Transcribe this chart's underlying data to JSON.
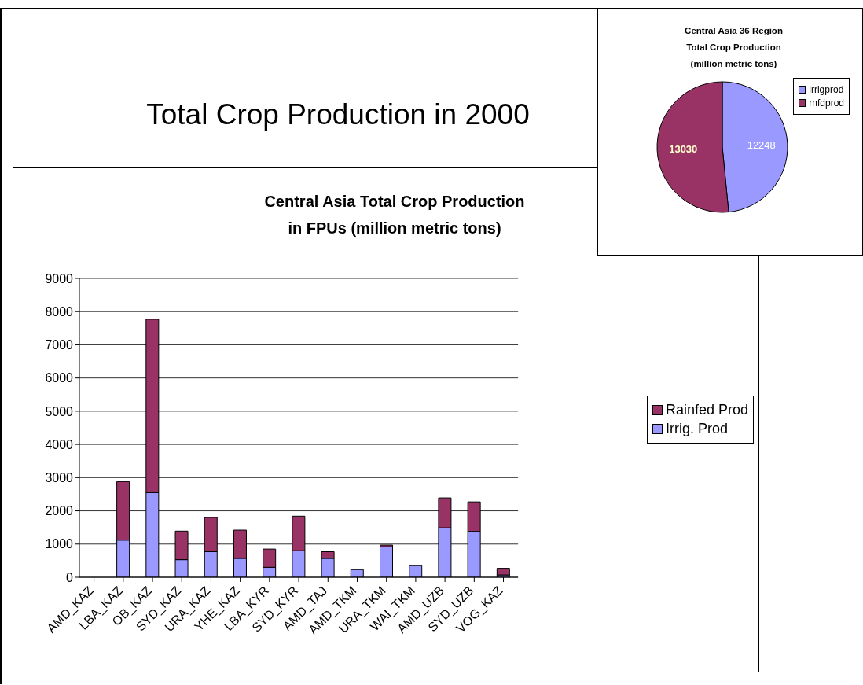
{
  "chart_data": [
    {
      "type": "bar",
      "title": "Central Asia Total Crop Production\nin FPUs (million metric tons)",
      "annotations": [
        "Total Crop Production in 2000"
      ],
      "stacked": true,
      "categories": [
        "AMD_KAZ",
        "LBA_KAZ",
        "OB_KAZ",
        "SYD_KAZ",
        "URA_KAZ",
        "YHE_KAZ",
        "LBA_KYR",
        "SYD_KYR",
        "AMD_TAJ",
        "AMD_TKM",
        "URA_TKM",
        "WAI_TKM",
        "AMD_UZB",
        "SYD_UZB",
        "VOG_KAZ"
      ],
      "series": [
        {
          "name": "Irrig. Prod",
          "color": "#9999ff",
          "values": [
            0,
            1120,
            2550,
            530,
            770,
            570,
            300,
            800,
            570,
            230,
            920,
            350,
            1490,
            1380,
            70
          ]
        },
        {
          "name": "Rainfed Prod",
          "color": "#993366",
          "values": [
            0,
            1760,
            5220,
            860,
            1030,
            850,
            550,
            1040,
            200,
            0,
            50,
            0,
            900,
            890,
            200
          ]
        }
      ],
      "ylim": [
        0,
        9000
      ],
      "yticks": [
        0,
        1000,
        2000,
        3000,
        4000,
        5000,
        6000,
        7000,
        8000,
        9000
      ],
      "grid": "y",
      "legend": "right"
    },
    {
      "type": "pie",
      "title": "Central Asia 36 Region\nTotal Crop Production\n(million metric tons)",
      "categories": [
        "irrigprod",
        "rnfdprod"
      ],
      "values": [
        12248,
        13030
      ],
      "colors": [
        "#9999ff",
        "#993366"
      ],
      "data_labels": true,
      "legend": "right"
    }
  ]
}
